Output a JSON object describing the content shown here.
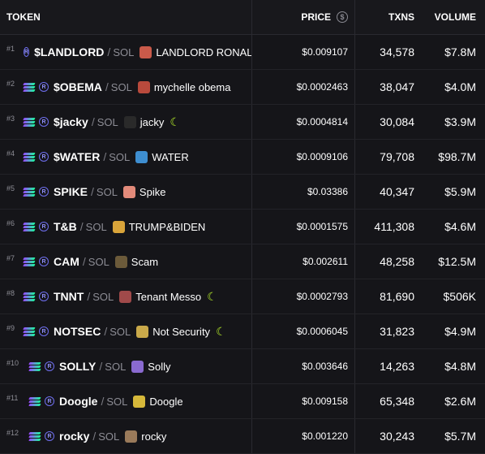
{
  "header": {
    "token": "TOKEN",
    "price": "PRICE",
    "price_icon": "$",
    "txns": "TXNS",
    "volume": "VOLUME"
  },
  "colors": {
    "background": "#151519",
    "moon": "#b8f02a",
    "solana_gradient": [
      "#9945ff",
      "#19fb9b"
    ]
  },
  "rows": [
    {
      "rank": "#1",
      "symbol": "$LANDLORD",
      "chain": "SOL",
      "name": "LANDLORD RONALD",
      "avatar_color": "#c95a4a",
      "moon": false,
      "price": "$0.009107",
      "txns": "34,578",
      "volume": "$7.8M"
    },
    {
      "rank": "#2",
      "symbol": "$OBEMA",
      "chain": "SOL",
      "name": "mychelle obema",
      "avatar_color": "#b94a3c",
      "moon": false,
      "price": "$0.0002463",
      "txns": "38,047",
      "volume": "$4.0M"
    },
    {
      "rank": "#3",
      "symbol": "$jacky",
      "chain": "SOL",
      "name": "jacky",
      "avatar_color": "#2a2a2a",
      "moon": true,
      "price": "$0.0004814",
      "txns": "30,084",
      "volume": "$3.9M"
    },
    {
      "rank": "#4",
      "symbol": "$WATER",
      "chain": "SOL",
      "name": "WATER",
      "avatar_color": "#3e8ed0",
      "moon": false,
      "price": "$0.0009106",
      "txns": "79,708",
      "volume": "$98.7M"
    },
    {
      "rank": "#5",
      "symbol": "SPIKE",
      "chain": "SOL",
      "name": "Spike",
      "avatar_color": "#e28a7a",
      "moon": false,
      "price": "$0.03386",
      "txns": "40,347",
      "volume": "$5.9M"
    },
    {
      "rank": "#6",
      "symbol": "T&B",
      "chain": "SOL",
      "name": "TRUMP&BIDEN",
      "avatar_color": "#d9a43a",
      "moon": false,
      "price": "$0.0001575",
      "txns": "411,308",
      "volume": "$4.6M"
    },
    {
      "rank": "#7",
      "symbol": "CAM",
      "chain": "SOL",
      "name": "Scam",
      "avatar_color": "#6b5a3a",
      "moon": false,
      "price": "$0.002611",
      "txns": "48,258",
      "volume": "$12.5M"
    },
    {
      "rank": "#8",
      "symbol": "TNNT",
      "chain": "SOL",
      "name": "Tenant Messo",
      "avatar_color": "#a04a4a",
      "moon": true,
      "price": "$0.0002793",
      "txns": "81,690",
      "volume": "$506K"
    },
    {
      "rank": "#9",
      "symbol": "NOTSEC",
      "chain": "SOL",
      "name": "Not Security",
      "avatar_color": "#c9a94a",
      "moon": true,
      "price": "$0.0006045",
      "txns": "31,823",
      "volume": "$4.9M"
    },
    {
      "rank": "#10",
      "symbol": "SOLLY",
      "chain": "SOL",
      "name": "Solly",
      "avatar_color": "#8a6ad0",
      "moon": false,
      "price": "$0.003646",
      "txns": "14,263",
      "volume": "$4.8M"
    },
    {
      "rank": "#11",
      "symbol": "Doogle",
      "chain": "SOL",
      "name": "Doogle",
      "avatar_color": "#d6b83a",
      "moon": false,
      "price": "$0.009158",
      "txns": "65,348",
      "volume": "$2.6M"
    },
    {
      "rank": "#12",
      "symbol": "rocky",
      "chain": "SOL",
      "name": "rocky",
      "avatar_color": "#9a7a5a",
      "moon": false,
      "price": "$0.001220",
      "txns": "30,243",
      "volume": "$5.7M"
    }
  ]
}
